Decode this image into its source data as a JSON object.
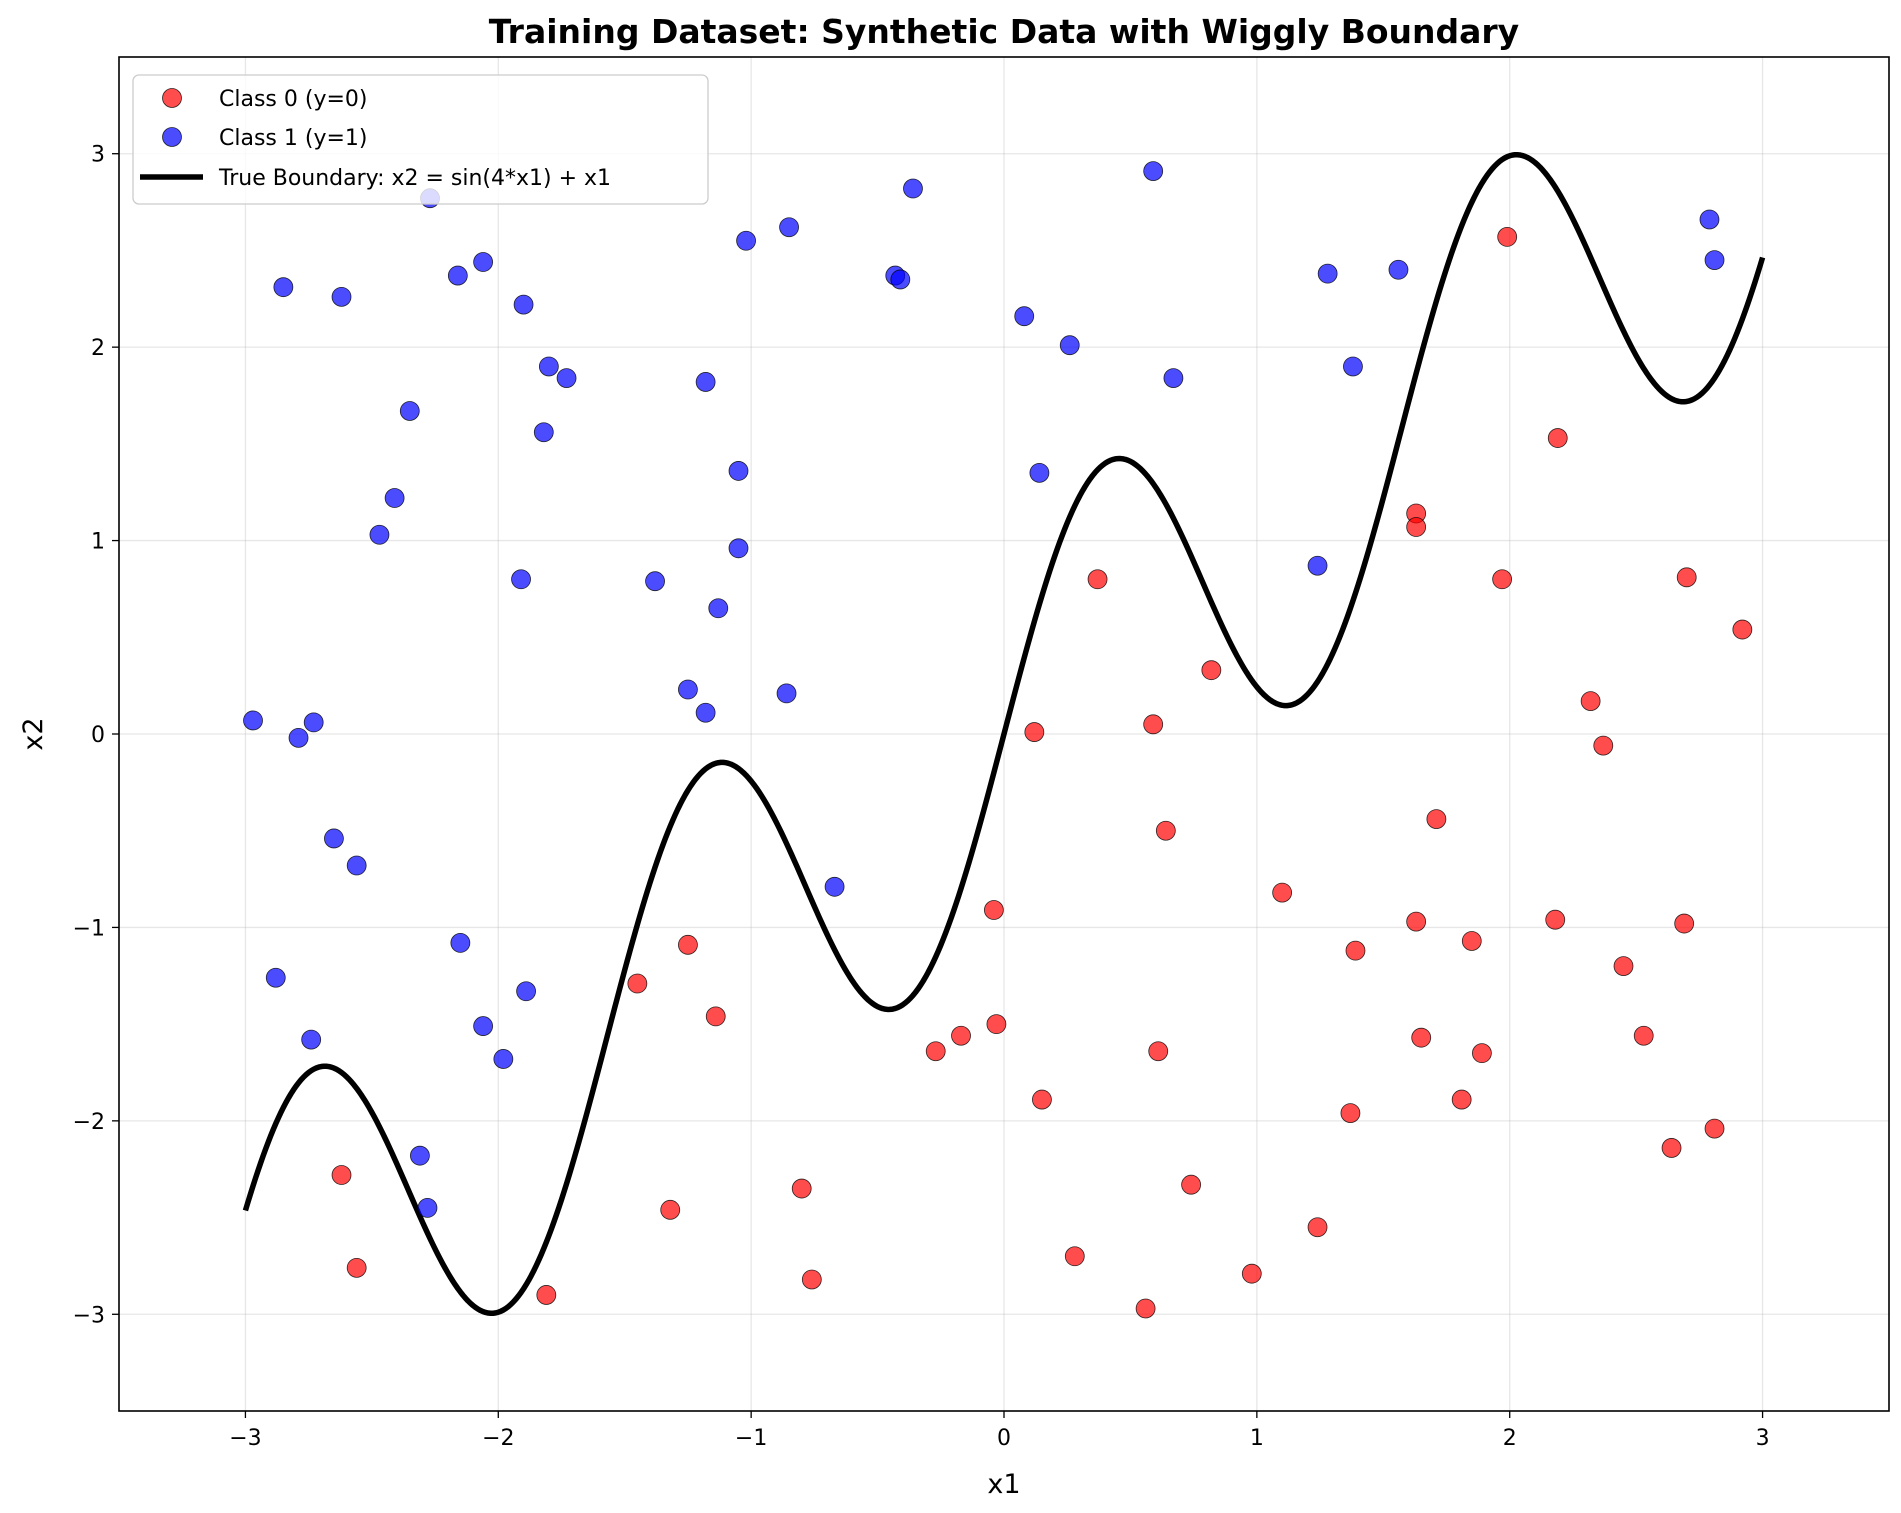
{
  "chart_data": {
    "type": "scatter",
    "title": "Training Dataset: Synthetic Data with Wiggly Boundary",
    "xlabel": "x1",
    "ylabel": "x2",
    "xlim": [
      -3.5,
      3.5
    ],
    "ylim": [
      -3.5,
      3.5
    ],
    "xticks": [
      -3,
      -2,
      -1,
      0,
      1,
      2,
      3
    ],
    "yticks": [
      -3,
      -2,
      -1,
      0,
      1,
      2,
      3
    ],
    "xtick_labels": [
      "−3",
      "−2",
      "−1",
      "0",
      "1",
      "2",
      "3"
    ],
    "ytick_labels": [
      "−3",
      "−2",
      "−1",
      "0",
      "1",
      "2",
      "3"
    ],
    "grid": true,
    "legend_position": "top-left",
    "series": [
      {
        "name": "Class 0 (y=0)",
        "color": "#ff0000",
        "points": [
          [
            -2.62,
            -2.28
          ],
          [
            -2.56,
            -2.76
          ],
          [
            -1.81,
            -2.9
          ],
          [
            -1.45,
            -1.29
          ],
          [
            -1.32,
            -2.46
          ],
          [
            -1.25,
            -1.09
          ],
          [
            -1.14,
            -1.46
          ],
          [
            -0.8,
            -2.35
          ],
          [
            -0.76,
            -2.82
          ],
          [
            -0.27,
            -1.64
          ],
          [
            -0.17,
            -1.56
          ],
          [
            -0.04,
            -0.91
          ],
          [
            -0.03,
            -1.5
          ],
          [
            0.12,
            0.01
          ],
          [
            0.15,
            -1.89
          ],
          [
            0.28,
            -2.7
          ],
          [
            0.37,
            0.8
          ],
          [
            0.56,
            -2.97
          ],
          [
            0.59,
            0.05
          ],
          [
            0.61,
            -1.64
          ],
          [
            0.64,
            -0.5
          ],
          [
            0.74,
            -2.33
          ],
          [
            0.82,
            0.33
          ],
          [
            0.98,
            -2.79
          ],
          [
            1.1,
            -0.82
          ],
          [
            1.24,
            -2.55
          ],
          [
            1.37,
            -1.96
          ],
          [
            1.39,
            -1.12
          ],
          [
            1.63,
            -0.97
          ],
          [
            1.63,
            1.14
          ],
          [
            1.63,
            1.07
          ],
          [
            1.65,
            -1.57
          ],
          [
            1.71,
            -0.44
          ],
          [
            1.81,
            -1.89
          ],
          [
            1.85,
            -1.07
          ],
          [
            1.89,
            -1.65
          ],
          [
            1.97,
            0.8
          ],
          [
            1.99,
            2.57
          ],
          [
            2.18,
            -0.96
          ],
          [
            2.19,
            1.53
          ],
          [
            2.32,
            0.17
          ],
          [
            2.37,
            -0.06
          ],
          [
            2.45,
            -1.2
          ],
          [
            2.53,
            -1.56
          ],
          [
            2.64,
            -2.14
          ],
          [
            2.69,
            -0.98
          ],
          [
            2.7,
            0.81
          ],
          [
            2.81,
            -2.04
          ],
          [
            2.92,
            0.54
          ]
        ]
      },
      {
        "name": "Class 1 (y=1)",
        "color": "#0000ff",
        "points": [
          [
            -2.97,
            0.07
          ],
          [
            -2.88,
            -1.26
          ],
          [
            -2.85,
            2.31
          ],
          [
            -2.79,
            -0.02
          ],
          [
            -2.74,
            -1.58
          ],
          [
            -2.73,
            0.06
          ],
          [
            -2.65,
            -0.54
          ],
          [
            -2.62,
            2.26
          ],
          [
            -2.56,
            -0.68
          ],
          [
            -2.47,
            1.03
          ],
          [
            -2.41,
            1.22
          ],
          [
            -2.35,
            1.67
          ],
          [
            -2.31,
            -2.18
          ],
          [
            -2.28,
            -2.45
          ],
          [
            -2.27,
            2.77
          ],
          [
            -2.16,
            2.37
          ],
          [
            -2.15,
            -1.08
          ],
          [
            -2.06,
            2.44
          ],
          [
            -2.06,
            -1.51
          ],
          [
            -1.98,
            -1.68
          ],
          [
            -1.91,
            0.8
          ],
          [
            -1.9,
            2.22
          ],
          [
            -1.89,
            -1.33
          ],
          [
            -1.82,
            1.56
          ],
          [
            -1.8,
            1.9
          ],
          [
            -1.73,
            1.84
          ],
          [
            -1.38,
            0.79
          ],
          [
            -1.25,
            0.23
          ],
          [
            -1.18,
            0.11
          ],
          [
            -1.18,
            1.82
          ],
          [
            -1.13,
            0.65
          ],
          [
            -1.05,
            1.36
          ],
          [
            -1.05,
            0.96
          ],
          [
            -1.02,
            2.55
          ],
          [
            -0.86,
            0.21
          ],
          [
            -0.85,
            2.62
          ],
          [
            -0.67,
            -0.79
          ],
          [
            -0.43,
            2.37
          ],
          [
            -0.41,
            2.35
          ],
          [
            -0.36,
            2.82
          ],
          [
            0.08,
            2.16
          ],
          [
            0.14,
            1.35
          ],
          [
            0.26,
            2.01
          ],
          [
            0.59,
            2.91
          ],
          [
            0.67,
            1.84
          ],
          [
            1.24,
            0.87
          ],
          [
            1.28,
            2.38
          ],
          [
            1.38,
            1.9
          ],
          [
            1.56,
            2.4
          ],
          [
            2.79,
            2.66
          ],
          [
            2.81,
            2.45
          ]
        ]
      }
    ],
    "boundary": {
      "name": "True Boundary: x2 = sin(4*x1) + x1",
      "color": "#000000",
      "x_range": [
        -3,
        3
      ]
    }
  }
}
